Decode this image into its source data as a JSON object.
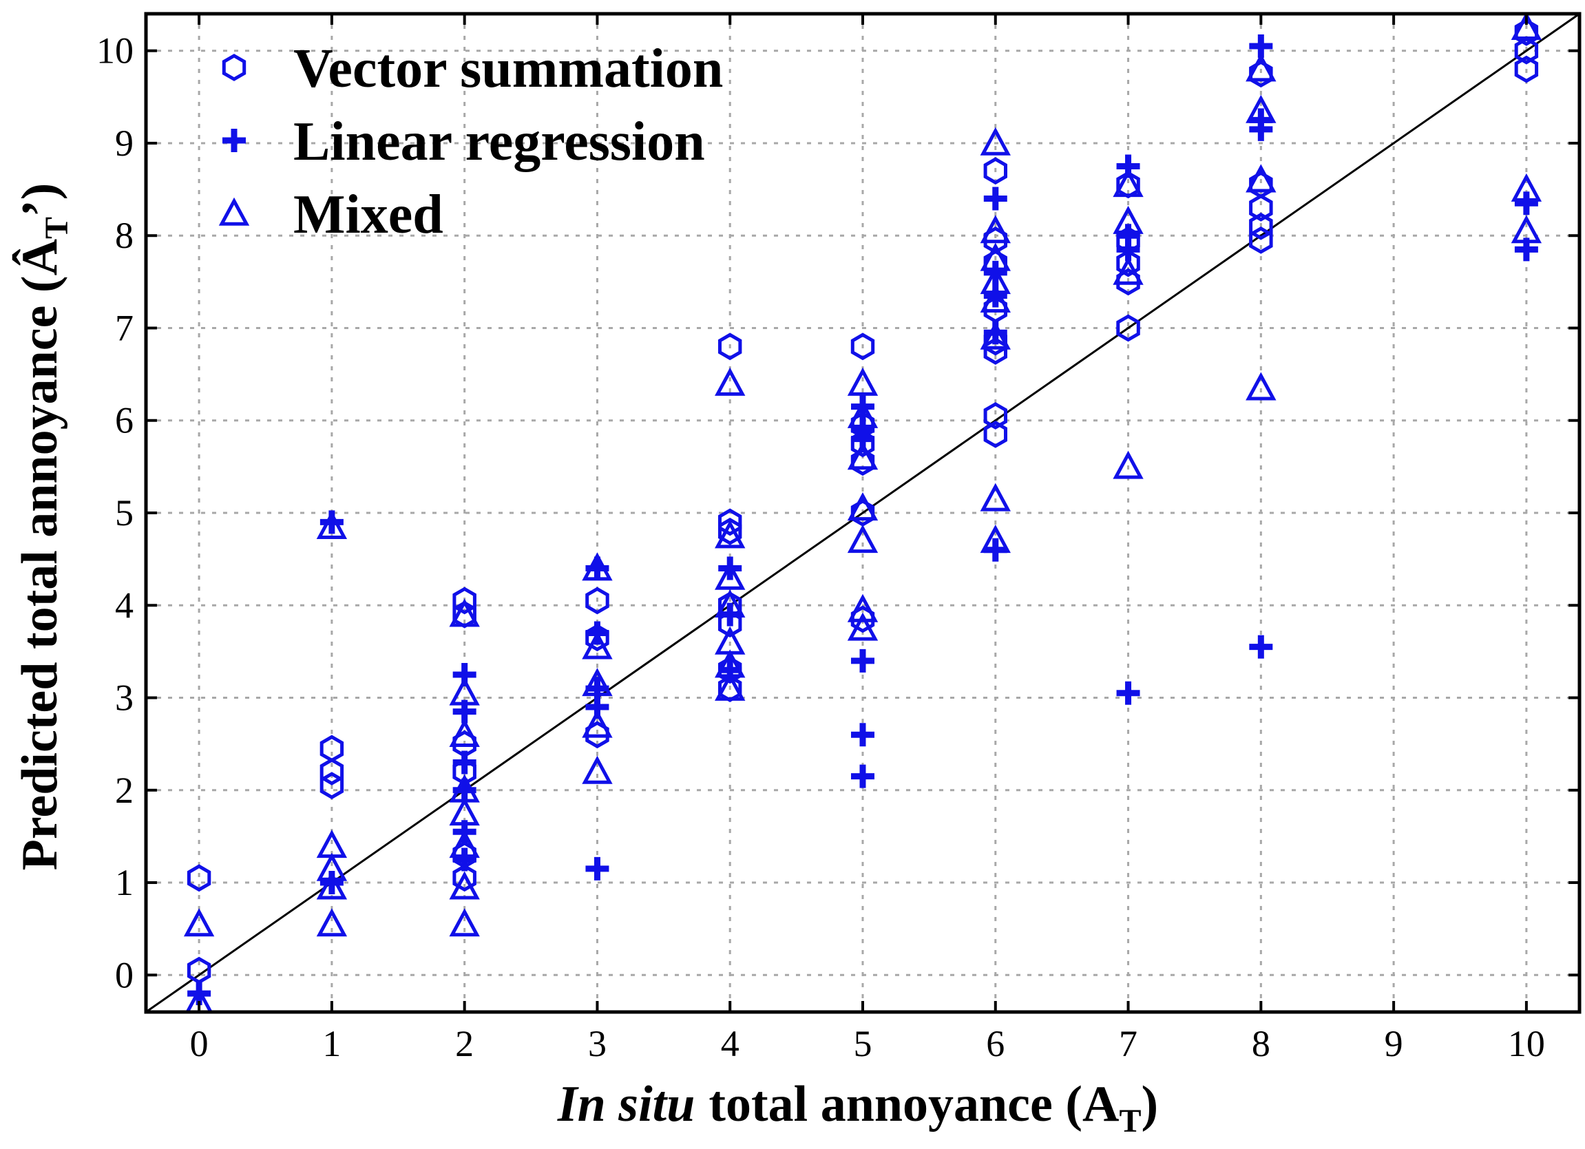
{
  "chart_data": {
    "type": "scatter",
    "title": "",
    "xlabel": {
      "italic_part": "In situ",
      "rest": "total annoyance (A",
      "subscript": "T",
      "close": ")"
    },
    "ylabel": {
      "text": "Predicted total annoyance (Â",
      "subscript": "T",
      "close": "’)"
    },
    "xlim": [
      -0.4,
      10.4
    ],
    "ylim": [
      -0.4,
      10.4
    ],
    "x_ticks": [
      0,
      1,
      2,
      3,
      4,
      5,
      6,
      7,
      8,
      9,
      10
    ],
    "y_ticks": [
      0,
      1,
      2,
      3,
      4,
      5,
      6,
      7,
      8,
      9,
      10
    ],
    "tick_labels_x": [
      "0",
      "1",
      "2",
      "3",
      "4",
      "5",
      "6",
      "7",
      "8",
      "9",
      "10"
    ],
    "tick_labels_y": [
      "0",
      "1",
      "2",
      "3",
      "4",
      "5",
      "6",
      "7",
      "8",
      "9",
      "10"
    ],
    "grid": true,
    "legend_position": "top-left",
    "reference_line": {
      "label": "y = x",
      "from": [
        -0.4,
        -0.4
      ],
      "to": [
        10.4,
        10.4
      ],
      "color": "#000000"
    },
    "series": [
      {
        "name": "Vector summation",
        "marker": "hexagon",
        "color": "#1010e8",
        "points": [
          [
            0,
            1.05
          ],
          [
            0,
            0.05
          ],
          [
            1,
            2.45
          ],
          [
            1,
            2.2
          ],
          [
            1,
            2.05
          ],
          [
            2,
            4.05
          ],
          [
            2,
            3.9
          ],
          [
            2,
            2.5
          ],
          [
            2,
            2.2
          ],
          [
            2,
            1.3
          ],
          [
            2,
            1.05
          ],
          [
            3,
            4.05
          ],
          [
            3,
            3.65
          ],
          [
            3,
            2.6
          ],
          [
            4,
            6.8
          ],
          [
            4,
            4.9
          ],
          [
            4,
            4.8
          ],
          [
            4,
            4.0
          ],
          [
            4,
            3.8
          ],
          [
            4,
            3.3
          ],
          [
            4,
            3.1
          ],
          [
            5,
            6.8
          ],
          [
            5,
            5.95
          ],
          [
            5,
            5.75
          ],
          [
            5,
            5.55
          ],
          [
            5,
            5.0
          ],
          [
            5,
            3.85
          ],
          [
            6,
            8.7
          ],
          [
            6,
            7.95
          ],
          [
            6,
            7.7
          ],
          [
            6,
            7.2
          ],
          [
            6,
            6.85
          ],
          [
            6,
            6.75
          ],
          [
            6,
            6.05
          ],
          [
            6,
            5.85
          ],
          [
            7,
            8.55
          ],
          [
            7,
            7.95
          ],
          [
            7,
            7.7
          ],
          [
            7,
            7.5
          ],
          [
            7,
            7.0
          ],
          [
            8,
            9.75
          ],
          [
            8,
            8.55
          ],
          [
            8,
            8.3
          ],
          [
            8,
            8.1
          ],
          [
            8,
            7.95
          ],
          [
            10,
            10.2
          ],
          [
            10,
            10.0
          ],
          [
            10,
            9.8
          ]
        ]
      },
      {
        "name": "Linear regression",
        "marker": "plus",
        "color": "#1010e8",
        "points": [
          [
            0,
            -0.2
          ],
          [
            1,
            4.9
          ],
          [
            1,
            1.0
          ],
          [
            2,
            3.25
          ],
          [
            2,
            2.85
          ],
          [
            2,
            2.3
          ],
          [
            2,
            2.0
          ],
          [
            2,
            1.55
          ],
          [
            2,
            1.25
          ],
          [
            3,
            4.4
          ],
          [
            3,
            3.7
          ],
          [
            3,
            3.1
          ],
          [
            3,
            2.9
          ],
          [
            3,
            1.15
          ],
          [
            4,
            4.4
          ],
          [
            4,
            3.9
          ],
          [
            4,
            3.3
          ],
          [
            5,
            6.15
          ],
          [
            5,
            5.9
          ],
          [
            5,
            5.8
          ],
          [
            5,
            3.4
          ],
          [
            5,
            2.6
          ],
          [
            5,
            2.15
          ],
          [
            6,
            8.4
          ],
          [
            6,
            7.6
          ],
          [
            6,
            7.35
          ],
          [
            6,
            6.95
          ],
          [
            6,
            4.6
          ],
          [
            7,
            8.75
          ],
          [
            7,
            8.0
          ],
          [
            7,
            7.85
          ],
          [
            7,
            3.05
          ],
          [
            8,
            10.05
          ],
          [
            8,
            9.25
          ],
          [
            8,
            9.15
          ],
          [
            8,
            3.55
          ],
          [
            10,
            8.35
          ],
          [
            10,
            7.85
          ]
        ]
      },
      {
        "name": "Mixed",
        "marker": "triangle",
        "color": "#1010e8",
        "points": [
          [
            0,
            0.55
          ],
          [
            0,
            -0.3
          ],
          [
            1,
            4.85
          ],
          [
            1,
            1.4
          ],
          [
            1,
            1.15
          ],
          [
            1,
            0.95
          ],
          [
            1,
            0.55
          ],
          [
            2,
            3.9
          ],
          [
            2,
            3.05
          ],
          [
            2,
            2.6
          ],
          [
            2,
            2.0
          ],
          [
            2,
            1.75
          ],
          [
            2,
            1.4
          ],
          [
            2,
            0.95
          ],
          [
            2,
            0.55
          ],
          [
            3,
            4.4
          ],
          [
            3,
            3.55
          ],
          [
            3,
            3.15
          ],
          [
            3,
            2.7
          ],
          [
            3,
            2.2
          ],
          [
            4,
            6.4
          ],
          [
            4,
            4.75
          ],
          [
            4,
            4.3
          ],
          [
            4,
            4.0
          ],
          [
            4,
            3.6
          ],
          [
            4,
            3.35
          ],
          [
            4,
            3.1
          ],
          [
            5,
            6.4
          ],
          [
            5,
            6.05
          ],
          [
            5,
            5.6
          ],
          [
            5,
            5.05
          ],
          [
            5,
            4.7
          ],
          [
            5,
            3.95
          ],
          [
            5,
            3.75
          ],
          [
            6,
            9.0
          ],
          [
            6,
            8.05
          ],
          [
            6,
            7.75
          ],
          [
            6,
            7.5
          ],
          [
            6,
            7.3
          ],
          [
            6,
            6.9
          ],
          [
            6,
            5.15
          ],
          [
            6,
            4.7
          ],
          [
            7,
            8.55
          ],
          [
            7,
            8.15
          ],
          [
            7,
            7.6
          ],
          [
            7,
            5.5
          ],
          [
            8,
            9.8
          ],
          [
            8,
            9.35
          ],
          [
            8,
            8.6
          ],
          [
            8,
            6.35
          ],
          [
            10,
            10.25
          ],
          [
            10,
            8.5
          ],
          [
            10,
            8.05
          ]
        ]
      }
    ]
  }
}
